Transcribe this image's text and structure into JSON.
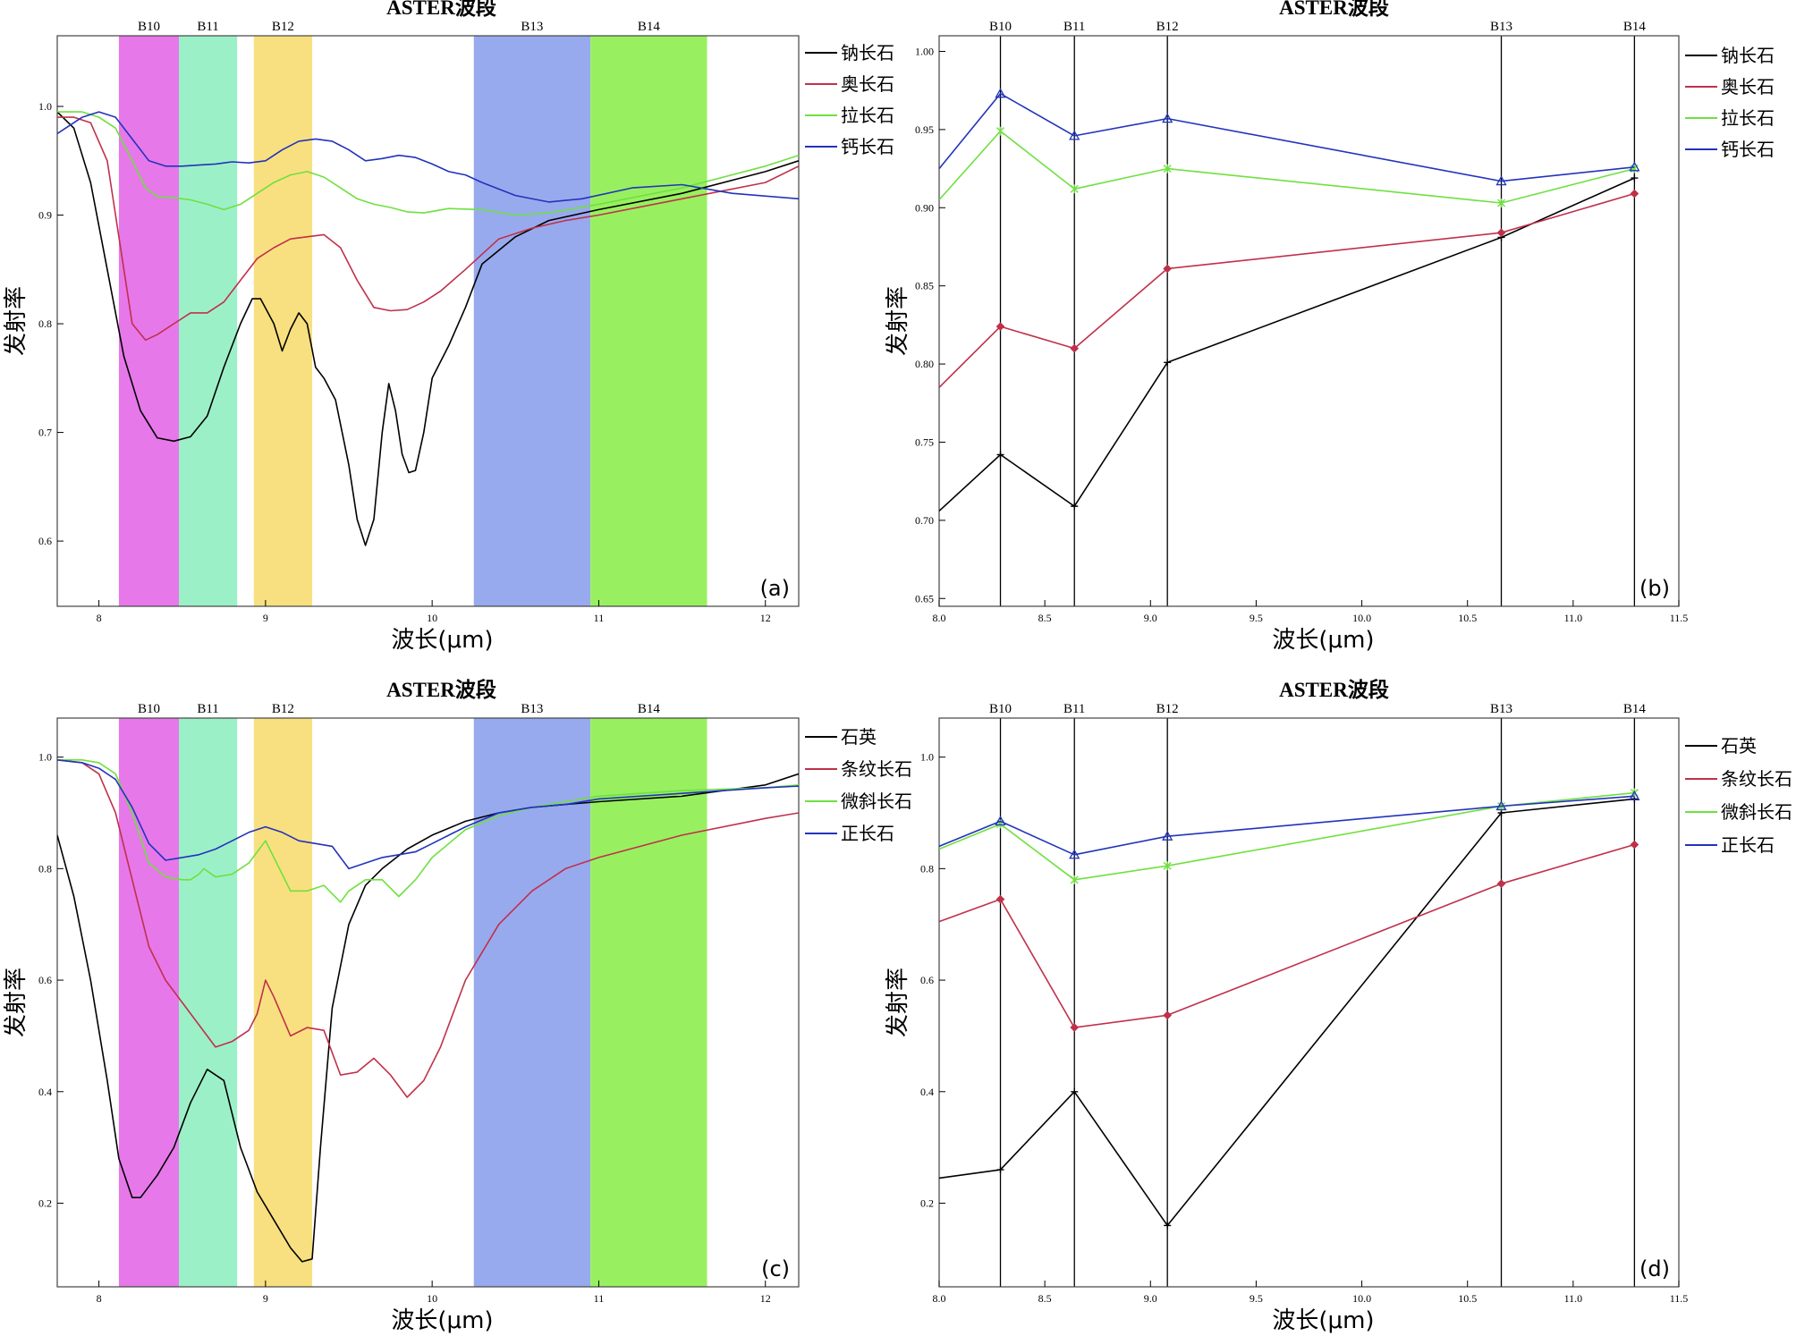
{
  "figure": {
    "background": "#ffffff",
    "series_colors": [
      "#000000",
      "#c0304a",
      "#6fe040",
      "#2233bb"
    ]
  },
  "chart_data": [
    {
      "id": "a",
      "type": "line",
      "top_title": "ASTER波段",
      "xlabel": "波长(μm)",
      "ylabel": "发射率",
      "panel_label": "(a)",
      "xlim": [
        7.75,
        12.2
      ],
      "ylim": [
        0.54,
        1.065
      ],
      "x_ticks": [
        8,
        9,
        10,
        11,
        12
      ],
      "y_ticks": [
        0.6,
        0.7,
        0.8,
        0.9,
        1.0
      ],
      "x_tick_labels": [
        "8",
        "9",
        "10",
        "11",
        "12"
      ],
      "y_tick_labels": [
        "0.6",
        "0.7",
        "0.8",
        "0.9",
        "1.0"
      ],
      "legend_position": "right",
      "bands": [
        {
          "name": "B10",
          "from": 8.12,
          "to": 8.48,
          "color": "#e678ea"
        },
        {
          "name": "B11",
          "from": 8.48,
          "to": 8.83,
          "color": "#9cf0c8"
        },
        {
          "name": "B12",
          "from": 8.93,
          "to": 9.28,
          "color": "#f8e080"
        },
        {
          "name": "B13",
          "from": 10.25,
          "to": 10.95,
          "color": "#98aaee"
        },
        {
          "name": "B14",
          "from": 10.95,
          "to": 11.65,
          "color": "#98f060"
        }
      ],
      "series": [
        {
          "name": "钠长石",
          "color": "#000000",
          "x": [
            7.75,
            7.85,
            7.95,
            8.05,
            8.15,
            8.25,
            8.35,
            8.45,
            8.55,
            8.65,
            8.75,
            8.85,
            8.92,
            8.97,
            9.05,
            9.1,
            9.15,
            9.2,
            9.25,
            9.3,
            9.35,
            9.42,
            9.5,
            9.55,
            9.6,
            9.65,
            9.7,
            9.74,
            9.78,
            9.82,
            9.86,
            9.9,
            9.95,
            10.0,
            10.1,
            10.2,
            10.3,
            10.5,
            10.7,
            11.0,
            11.5,
            12.0,
            12.2
          ],
          "y": [
            0.995,
            0.98,
            0.93,
            0.85,
            0.77,
            0.72,
            0.695,
            0.692,
            0.696,
            0.715,
            0.76,
            0.8,
            0.823,
            0.823,
            0.8,
            0.775,
            0.795,
            0.81,
            0.8,
            0.76,
            0.75,
            0.73,
            0.67,
            0.62,
            0.596,
            0.62,
            0.7,
            0.745,
            0.72,
            0.68,
            0.663,
            0.665,
            0.7,
            0.75,
            0.78,
            0.815,
            0.855,
            0.88,
            0.895,
            0.905,
            0.92,
            0.94,
            0.95
          ]
        },
        {
          "name": "奥长石",
          "color": "#c0304a",
          "x": [
            7.75,
            7.85,
            7.95,
            8.05,
            8.12,
            8.2,
            8.28,
            8.35,
            8.45,
            8.55,
            8.65,
            8.75,
            8.85,
            8.95,
            9.05,
            9.15,
            9.25,
            9.35,
            9.45,
            9.55,
            9.65,
            9.75,
            9.85,
            9.95,
            10.05,
            10.2,
            10.4,
            10.6,
            10.8,
            11.0,
            11.5,
            12.0,
            12.2
          ],
          "y": [
            0.99,
            0.99,
            0.985,
            0.95,
            0.88,
            0.8,
            0.785,
            0.79,
            0.8,
            0.81,
            0.81,
            0.82,
            0.84,
            0.86,
            0.87,
            0.878,
            0.88,
            0.882,
            0.87,
            0.84,
            0.815,
            0.812,
            0.813,
            0.82,
            0.83,
            0.85,
            0.878,
            0.888,
            0.895,
            0.9,
            0.915,
            0.93,
            0.945
          ]
        },
        {
          "name": "拉长石",
          "color": "#6fe040",
          "x": [
            7.75,
            7.9,
            8.0,
            8.1,
            8.2,
            8.28,
            8.35,
            8.45,
            8.55,
            8.65,
            8.75,
            8.85,
            8.95,
            9.05,
            9.15,
            9.25,
            9.35,
            9.45,
            9.55,
            9.65,
            9.75,
            9.85,
            9.95,
            10.1,
            10.3,
            10.5,
            10.7,
            11.0,
            11.5,
            12.0,
            12.2
          ],
          "y": [
            0.995,
            0.995,
            0.99,
            0.98,
            0.95,
            0.925,
            0.917,
            0.916,
            0.914,
            0.91,
            0.905,
            0.91,
            0.92,
            0.93,
            0.937,
            0.94,
            0.935,
            0.925,
            0.915,
            0.91,
            0.907,
            0.903,
            0.902,
            0.906,
            0.905,
            0.9,
            0.902,
            0.91,
            0.925,
            0.945,
            0.955
          ]
        },
        {
          "name": "钙长石",
          "color": "#2233bb",
          "x": [
            7.75,
            7.9,
            8.0,
            8.1,
            8.2,
            8.3,
            8.4,
            8.5,
            8.6,
            8.7,
            8.8,
            8.9,
            9.0,
            9.1,
            9.2,
            9.3,
            9.4,
            9.5,
            9.6,
            9.7,
            9.8,
            9.9,
            10.0,
            10.1,
            10.2,
            10.3,
            10.5,
            10.7,
            10.9,
            11.2,
            11.5,
            11.8,
            12.2
          ],
          "y": [
            0.975,
            0.99,
            0.995,
            0.99,
            0.97,
            0.95,
            0.945,
            0.945,
            0.946,
            0.947,
            0.949,
            0.948,
            0.95,
            0.96,
            0.968,
            0.97,
            0.968,
            0.96,
            0.95,
            0.952,
            0.955,
            0.953,
            0.947,
            0.94,
            0.937,
            0.93,
            0.918,
            0.912,
            0.915,
            0.925,
            0.928,
            0.92,
            0.915
          ]
        }
      ]
    },
    {
      "id": "b",
      "type": "line",
      "top_title": "ASTER波段",
      "xlabel": "波长(μm)",
      "ylabel": "发射率",
      "panel_label": "(b)",
      "xlim": [
        8.0,
        11.5
      ],
      "ylim": [
        0.645,
        1.01
      ],
      "x_ticks": [
        8.0,
        8.5,
        9.0,
        9.5,
        10.0,
        10.5,
        11.0,
        11.5
      ],
      "y_ticks": [
        0.65,
        0.7,
        0.75,
        0.8,
        0.85,
        0.9,
        0.95,
        1.0
      ],
      "x_tick_labels": [
        "8.0",
        "8.5",
        "9.0",
        "9.5",
        "10.0",
        "10.5",
        "11.0",
        "11.5"
      ],
      "y_tick_labels": [
        "0.65",
        "0.70",
        "0.75",
        "0.80",
        "0.85",
        "0.90",
        "0.95",
        "1.00"
      ],
      "legend_position": "right",
      "band_lines": [
        {
          "name": "B10",
          "x": 8.29
        },
        {
          "name": "B11",
          "x": 8.64
        },
        {
          "name": "B12",
          "x": 9.08
        },
        {
          "name": "B13",
          "x": 10.66
        },
        {
          "name": "B14",
          "x": 11.29
        }
      ],
      "series": [
        {
          "name": "钠长石",
          "color": "#000000",
          "x": [
            8.0,
            8.29,
            8.64,
            9.08,
            10.66,
            11.29
          ],
          "y": [
            0.706,
            0.742,
            0.709,
            0.801,
            0.881,
            0.919
          ]
        },
        {
          "name": "奥长石",
          "color": "#c0304a",
          "x": [
            8.0,
            8.29,
            8.64,
            9.08,
            10.66,
            11.29
          ],
          "y": [
            0.785,
            0.824,
            0.81,
            0.861,
            0.884,
            0.909
          ]
        },
        {
          "name": "拉长石",
          "color": "#6fe040",
          "x": [
            8.0,
            8.29,
            8.64,
            9.08,
            10.66,
            11.29
          ],
          "y": [
            0.905,
            0.949,
            0.912,
            0.925,
            0.903,
            0.925
          ]
        },
        {
          "name": "钙长石",
          "color": "#2233bb",
          "x": [
            8.0,
            8.29,
            8.64,
            9.08,
            10.66,
            11.29
          ],
          "y": [
            0.925,
            0.973,
            0.946,
            0.957,
            0.917,
            0.926
          ]
        }
      ]
    },
    {
      "id": "c",
      "type": "line",
      "top_title": "ASTER波段",
      "xlabel": "波长(μm)",
      "ylabel": "发射率",
      "panel_label": "(c)",
      "xlim": [
        7.75,
        12.2
      ],
      "ylim": [
        0.05,
        1.07
      ],
      "x_ticks": [
        8,
        9,
        10,
        11,
        12
      ],
      "y_ticks": [
        0.2,
        0.4,
        0.6,
        0.8,
        1.0
      ],
      "x_tick_labels": [
        "8",
        "9",
        "10",
        "11",
        "12"
      ],
      "y_tick_labels": [
        "0.2",
        "0.4",
        "0.6",
        "0.8",
        "1.0"
      ],
      "legend_position": "right",
      "bands": [
        {
          "name": "B10",
          "from": 8.12,
          "to": 8.48,
          "color": "#e678ea"
        },
        {
          "name": "B11",
          "from": 8.48,
          "to": 8.83,
          "color": "#9cf0c8"
        },
        {
          "name": "B12",
          "from": 8.93,
          "to": 9.28,
          "color": "#f8e080"
        },
        {
          "name": "B13",
          "from": 10.25,
          "to": 10.95,
          "color": "#98aaee"
        },
        {
          "name": "B14",
          "from": 10.95,
          "to": 11.65,
          "color": "#98f060"
        }
      ],
      "series": [
        {
          "name": "石英",
          "color": "#000000",
          "x": [
            7.75,
            7.85,
            7.95,
            8.05,
            8.12,
            8.2,
            8.25,
            8.35,
            8.45,
            8.55,
            8.65,
            8.75,
            8.85,
            8.95,
            9.05,
            9.15,
            9.22,
            9.28,
            9.33,
            9.4,
            9.5,
            9.6,
            9.7,
            9.85,
            10.0,
            10.2,
            10.4,
            10.6,
            10.8,
            11.0,
            11.5,
            12.0,
            12.2
          ],
          "y": [
            0.86,
            0.75,
            0.6,
            0.42,
            0.28,
            0.21,
            0.21,
            0.25,
            0.3,
            0.38,
            0.44,
            0.42,
            0.3,
            0.22,
            0.17,
            0.12,
            0.095,
            0.1,
            0.3,
            0.55,
            0.7,
            0.77,
            0.8,
            0.835,
            0.86,
            0.885,
            0.9,
            0.91,
            0.915,
            0.92,
            0.93,
            0.95,
            0.97
          ]
        },
        {
          "name": "条纹长石",
          "color": "#c0304a",
          "x": [
            7.75,
            7.9,
            8.0,
            8.1,
            8.2,
            8.3,
            8.4,
            8.5,
            8.6,
            8.7,
            8.8,
            8.9,
            8.95,
            9.0,
            9.05,
            9.15,
            9.25,
            9.35,
            9.45,
            9.55,
            9.65,
            9.75,
            9.85,
            9.95,
            10.05,
            10.2,
            10.4,
            10.6,
            10.8,
            11.0,
            11.5,
            12.0,
            12.2
          ],
          "y": [
            0.995,
            0.99,
            0.97,
            0.9,
            0.78,
            0.66,
            0.6,
            0.56,
            0.52,
            0.48,
            0.49,
            0.51,
            0.54,
            0.6,
            0.57,
            0.5,
            0.515,
            0.51,
            0.43,
            0.435,
            0.46,
            0.43,
            0.39,
            0.42,
            0.48,
            0.6,
            0.7,
            0.76,
            0.8,
            0.82,
            0.86,
            0.89,
            0.9
          ]
        },
        {
          "name": "微斜长石",
          "color": "#6fe040",
          "x": [
            7.75,
            7.9,
            8.0,
            8.1,
            8.2,
            8.3,
            8.4,
            8.5,
            8.55,
            8.6,
            8.63,
            8.7,
            8.8,
            8.9,
            9.0,
            9.05,
            9.15,
            9.25,
            9.35,
            9.45,
            9.5,
            9.6,
            9.7,
            9.8,
            9.9,
            10.0,
            10.2,
            10.4,
            10.6,
            10.8,
            11.0,
            11.5,
            12.0,
            12.2
          ],
          "y": [
            0.995,
            0.995,
            0.99,
            0.97,
            0.9,
            0.81,
            0.785,
            0.78,
            0.78,
            0.79,
            0.8,
            0.785,
            0.79,
            0.81,
            0.85,
            0.82,
            0.76,
            0.76,
            0.77,
            0.74,
            0.76,
            0.78,
            0.78,
            0.75,
            0.78,
            0.82,
            0.87,
            0.895,
            0.91,
            0.92,
            0.93,
            0.94,
            0.945,
            0.95
          ]
        },
        {
          "name": "正长石",
          "color": "#2233bb",
          "x": [
            7.75,
            7.9,
            8.0,
            8.1,
            8.2,
            8.3,
            8.4,
            8.5,
            8.6,
            8.7,
            8.8,
            8.9,
            9.0,
            9.1,
            9.2,
            9.3,
            9.4,
            9.5,
            9.6,
            9.7,
            9.8,
            9.9,
            10.0,
            10.2,
            10.4,
            10.6,
            10.8,
            11.0,
            11.5,
            12.0,
            12.2
          ],
          "y": [
            0.995,
            0.99,
            0.98,
            0.96,
            0.91,
            0.845,
            0.815,
            0.82,
            0.825,
            0.835,
            0.85,
            0.865,
            0.875,
            0.865,
            0.85,
            0.845,
            0.84,
            0.8,
            0.81,
            0.82,
            0.825,
            0.83,
            0.845,
            0.875,
            0.9,
            0.91,
            0.915,
            0.925,
            0.935,
            0.945,
            0.948
          ]
        }
      ]
    },
    {
      "id": "d",
      "type": "line",
      "top_title": "ASTER波段",
      "xlabel": "波长(μm)",
      "ylabel": "发射率",
      "panel_label": "(d)",
      "xlim": [
        8.0,
        11.5
      ],
      "ylim": [
        0.05,
        1.07
      ],
      "x_ticks": [
        8.0,
        8.5,
        9.0,
        9.5,
        10.0,
        10.5,
        11.0,
        11.5
      ],
      "y_ticks": [
        0.2,
        0.4,
        0.6,
        0.8,
        1.0
      ],
      "x_tick_labels": [
        "8.0",
        "8.5",
        "9.0",
        "9.5",
        "10.0",
        "10.5",
        "11.0",
        "11.5"
      ],
      "y_tick_labels": [
        "0.2",
        "0.4",
        "0.6",
        "0.8",
        "1.0"
      ],
      "legend_position": "right",
      "band_lines": [
        {
          "name": "B10",
          "x": 8.29
        },
        {
          "name": "B11",
          "x": 8.64
        },
        {
          "name": "B12",
          "x": 9.08
        },
        {
          "name": "B13",
          "x": 10.66
        },
        {
          "name": "B14",
          "x": 11.29
        }
      ],
      "series": [
        {
          "name": "石英",
          "color": "#000000",
          "x": [
            8.0,
            8.29,
            8.64,
            9.08,
            10.66,
            11.29
          ],
          "y": [
            0.245,
            0.26,
            0.4,
            0.16,
            0.9,
            0.925
          ]
        },
        {
          "name": "条纹长石",
          "color": "#c0304a",
          "x": [
            8.0,
            8.29,
            8.64,
            9.08,
            10.66,
            11.29
          ],
          "y": [
            0.705,
            0.745,
            0.515,
            0.537,
            0.773,
            0.843
          ]
        },
        {
          "name": "微斜长石",
          "color": "#6fe040",
          "x": [
            8.0,
            8.29,
            8.64,
            9.08,
            10.66,
            11.29
          ],
          "y": [
            0.835,
            0.88,
            0.78,
            0.805,
            0.912,
            0.936
          ]
        },
        {
          "name": "正长石",
          "color": "#2233bb",
          "x": [
            8.0,
            8.29,
            8.64,
            9.08,
            10.66,
            11.29
          ],
          "y": [
            0.84,
            0.885,
            0.825,
            0.858,
            0.912,
            0.93
          ]
        }
      ]
    }
  ]
}
